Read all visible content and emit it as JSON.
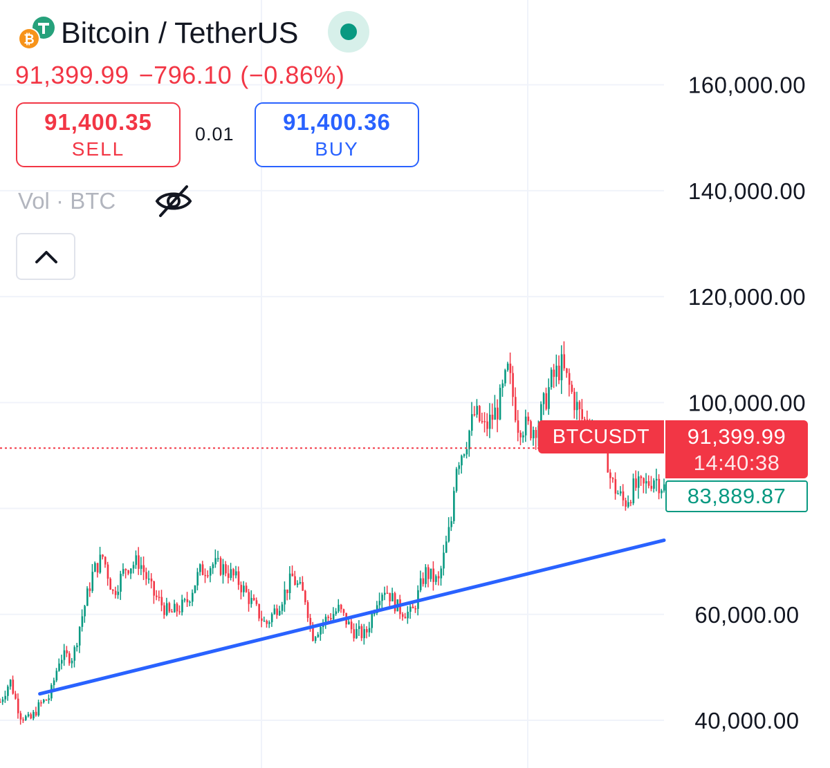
{
  "header": {
    "title": "Bitcoin / TetherUS",
    "coin_icon": "bitcoin-tether-icon",
    "status_icon": "market-open-dot",
    "last_price": "91,399.99",
    "change": "−796.10",
    "change_pct": "(−0.86%)"
  },
  "trade": {
    "sell_price": "91,400.35",
    "sell_label": "SELL",
    "spread": "0.01",
    "buy_price": "91,400.36",
    "buy_label": "BUY"
  },
  "indicator": {
    "label": "Vol · BTC",
    "visibility_icon": "eye-off-icon",
    "collapse_icon": "chevron-up-icon"
  },
  "colors": {
    "up": "#089981",
    "down": "#f23645",
    "trendline": "#2962ff",
    "grid": "#f0f3fa"
  },
  "chart_data": {
    "type": "candlestick",
    "symbol": "BTCUSDT",
    "ylim": [
      31000,
      176000
    ],
    "y_ticks": [
      40000,
      60000,
      80000,
      100000,
      120000,
      140000,
      160000
    ],
    "y_tick_labels": [
      "40,000.00",
      "60,000.00",
      "",
      "100,000.00",
      "120,000.00",
      "140,000.00",
      "160,000.00"
    ],
    "last_price": 91399.99,
    "last_price_label": "91,399.99",
    "countdown": "14:40:38",
    "reference_price": 83889.87,
    "reference_label": "83,889.87",
    "trendline": {
      "start": [
        0.06,
        45000
      ],
      "end": [
        1.0,
        74000
      ]
    },
    "price_path": [
      [
        0.0,
        43500
      ],
      [
        0.015,
        47500
      ],
      [
        0.03,
        41000
      ],
      [
        0.045,
        40000
      ],
      [
        0.06,
        43000
      ],
      [
        0.075,
        44500
      ],
      [
        0.09,
        52000
      ],
      [
        0.11,
        52000
      ],
      [
        0.12,
        58000
      ],
      [
        0.14,
        68000
      ],
      [
        0.155,
        71000
      ],
      [
        0.17,
        64000
      ],
      [
        0.19,
        69000
      ],
      [
        0.21,
        70000
      ],
      [
        0.23,
        64000
      ],
      [
        0.255,
        60000
      ],
      [
        0.28,
        62000
      ],
      [
        0.3,
        68000
      ],
      [
        0.32,
        69500
      ],
      [
        0.34,
        68500
      ],
      [
        0.36,
        66000
      ],
      [
        0.38,
        62000
      ],
      [
        0.4,
        58000
      ],
      [
        0.42,
        62000
      ],
      [
        0.44,
        67000
      ],
      [
        0.46,
        63000
      ],
      [
        0.47,
        56000
      ],
      [
        0.49,
        59000
      ],
      [
        0.51,
        61000
      ],
      [
        0.53,
        57000
      ],
      [
        0.55,
        56000
      ],
      [
        0.57,
        64000
      ],
      [
        0.58,
        65000
      ],
      [
        0.6,
        61000
      ],
      [
        0.62,
        60000
      ],
      [
        0.64,
        68000
      ],
      [
        0.66,
        66000
      ],
      [
        0.67,
        72000
      ],
      [
        0.68,
        78000
      ],
      [
        0.685,
        88000
      ],
      [
        0.7,
        92000
      ],
      [
        0.715,
        98000
      ],
      [
        0.73,
        95000
      ],
      [
        0.75,
        99000
      ],
      [
        0.765,
        106000
      ],
      [
        0.78,
        96000
      ],
      [
        0.8,
        95000
      ],
      [
        0.81,
        96000
      ],
      [
        0.83,
        104000
      ],
      [
        0.845,
        107000
      ],
      [
        0.86,
        102000
      ],
      [
        0.875,
        97000
      ],
      [
        0.895,
        95000
      ],
      [
        0.91,
        93000
      ],
      [
        0.92,
        85000
      ],
      [
        0.94,
        81000
      ],
      [
        0.955,
        84000
      ],
      [
        0.97,
        84000
      ],
      [
        0.985,
        86000
      ],
      [
        1.0,
        83900
      ]
    ]
  }
}
